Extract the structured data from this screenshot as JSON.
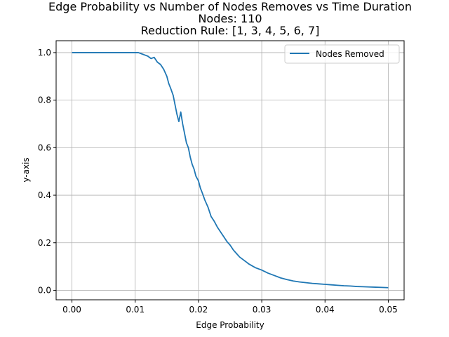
{
  "chart_data": {
    "type": "line",
    "title_lines": [
      "Edge Probability vs Number of Nodes Removes vs Time Duration",
      "Nodes: 110",
      "Reduction Rule: [1, 3, 4, 5, 6, 7]"
    ],
    "xlabel": "Edge Probability",
    "ylabel": "y-axis",
    "xlim": [
      -0.0025,
      0.0525
    ],
    "ylim": [
      -0.04,
      1.05
    ],
    "x_ticks": [
      0.0,
      0.01,
      0.02,
      0.03,
      0.04,
      0.05
    ],
    "x_tick_labels": [
      "0.00",
      "0.01",
      "0.02",
      "0.03",
      "0.04",
      "0.05"
    ],
    "y_ticks": [
      0.0,
      0.2,
      0.4,
      0.6,
      0.8,
      1.0
    ],
    "y_tick_labels": [
      "0.0",
      "0.2",
      "0.4",
      "0.6",
      "0.8",
      "1.0"
    ],
    "grid": true,
    "legend": {
      "position": "top-right",
      "entries": [
        "Nodes Removed"
      ]
    },
    "series_color": "#1f77b4",
    "series": [
      {
        "name": "Nodes Removed",
        "x": [
          0.0,
          0.002,
          0.004,
          0.006,
          0.008,
          0.01,
          0.0105,
          0.011,
          0.0115,
          0.012,
          0.0125,
          0.013,
          0.0135,
          0.014,
          0.0145,
          0.015,
          0.0153,
          0.0156,
          0.016,
          0.0163,
          0.0166,
          0.0169,
          0.0172,
          0.0175,
          0.0178,
          0.0181,
          0.0184,
          0.0187,
          0.019,
          0.0193,
          0.0196,
          0.02,
          0.0203,
          0.0206,
          0.021,
          0.0215,
          0.022,
          0.0225,
          0.023,
          0.0235,
          0.024,
          0.0245,
          0.025,
          0.0255,
          0.026,
          0.0265,
          0.027,
          0.0275,
          0.028,
          0.029,
          0.03,
          0.031,
          0.032,
          0.033,
          0.034,
          0.035,
          0.036,
          0.037,
          0.038,
          0.039,
          0.04,
          0.041,
          0.042,
          0.043,
          0.044,
          0.045,
          0.046,
          0.047,
          0.048,
          0.049,
          0.05
        ],
        "y": [
          1.0,
          1.0,
          1.0,
          1.0,
          1.0,
          1.0,
          1.0,
          0.995,
          0.99,
          0.985,
          0.975,
          0.98,
          0.96,
          0.95,
          0.93,
          0.9,
          0.87,
          0.85,
          0.82,
          0.78,
          0.74,
          0.71,
          0.75,
          0.7,
          0.66,
          0.62,
          0.6,
          0.56,
          0.53,
          0.51,
          0.48,
          0.46,
          0.43,
          0.41,
          0.38,
          0.35,
          0.31,
          0.29,
          0.265,
          0.245,
          0.225,
          0.205,
          0.19,
          0.17,
          0.155,
          0.14,
          0.13,
          0.12,
          0.11,
          0.095,
          0.085,
          0.072,
          0.062,
          0.052,
          0.045,
          0.039,
          0.035,
          0.032,
          0.029,
          0.027,
          0.025,
          0.023,
          0.021,
          0.019,
          0.018,
          0.016,
          0.015,
          0.014,
          0.013,
          0.012,
          0.011
        ]
      }
    ]
  }
}
